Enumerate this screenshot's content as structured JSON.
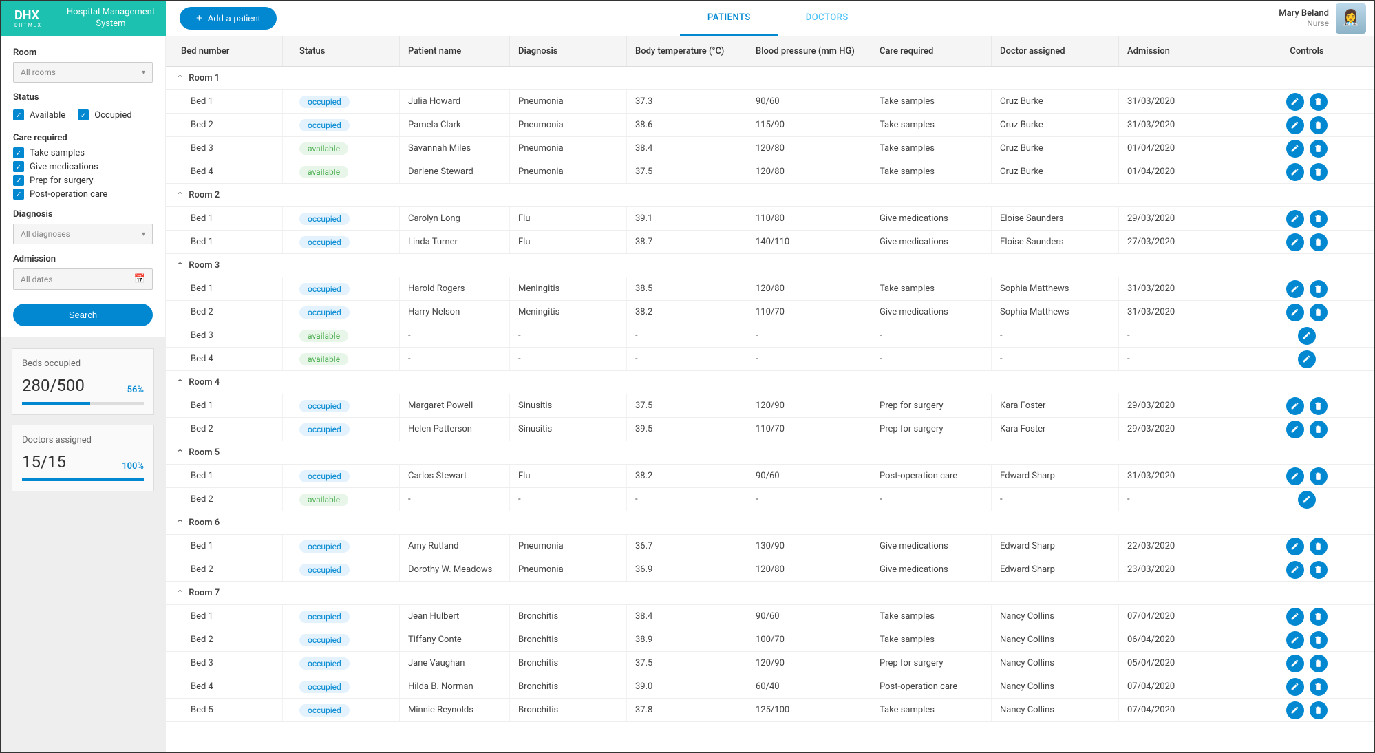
{
  "header": {
    "logo_main": "DHX",
    "logo_sub": "DHTMLX",
    "system_title": "Hospital Management System",
    "add_patient": "Add a patient",
    "tabs": {
      "patients": "PATIENTS",
      "doctors": "DOCTORS"
    },
    "user": {
      "name": "Mary Beland",
      "role": "Nurse"
    }
  },
  "sidebar": {
    "room_label": "Room",
    "room_select": "All rooms",
    "status_label": "Status",
    "status_opts": {
      "available": "Available",
      "occupied": "Occupied"
    },
    "care_label": "Care required",
    "care_opts": [
      "Take samples",
      "Give medications",
      "Prep for surgery",
      "Post-operation care"
    ],
    "diag_label": "Diagnosis",
    "diag_select": "All diagnoses",
    "adm_label": "Admission",
    "adm_select": "All dates",
    "search_btn": "Search",
    "stats": {
      "beds": {
        "label": "Beds occupied",
        "value": "280/500",
        "pct": "56%",
        "pct_num": 56
      },
      "docs": {
        "label": "Doctors assigned",
        "value": "15/15",
        "pct": "100%",
        "pct_num": 100
      }
    }
  },
  "columns": {
    "bed": "Bed number",
    "status": "Status",
    "name": "Patient name",
    "diag": "Diagnosis",
    "temp": "Body temperature (°C)",
    "bp": "Blood pressure (mm HG)",
    "care": "Care required",
    "doc": "Doctor assigned",
    "adm": "Admission",
    "controls": "Controls"
  },
  "groups": [
    {
      "title": "Room 1",
      "rows": [
        {
          "bed": "Bed 1",
          "status": "occupied",
          "name": "Julia Howard",
          "diag": "Pneumonia",
          "temp": "37.3",
          "bp": "90/60",
          "care": "Take samples",
          "doc": "Cruz Burke",
          "adm": "31/03/2020",
          "del": true
        },
        {
          "bed": "Bed 2",
          "status": "occupied",
          "name": "Pamela Clark",
          "diag": "Pneumonia",
          "temp": "38.6",
          "bp": "115/90",
          "care": "Take samples",
          "doc": "Cruz Burke",
          "adm": "31/03/2020",
          "del": true
        },
        {
          "bed": "Bed 3",
          "status": "available",
          "name": "Savannah Miles",
          "diag": "Pneumonia",
          "temp": "38.4",
          "bp": "120/80",
          "care": "Take samples",
          "doc": "Cruz Burke",
          "adm": "01/04/2020",
          "del": true
        },
        {
          "bed": "Bed 4",
          "status": "available",
          "name": "Darlene Steward",
          "diag": "Pneumonia",
          "temp": "37.5",
          "bp": "120/80",
          "care": "Take samples",
          "doc": "Cruz Burke",
          "adm": "01/04/2020",
          "del": true
        }
      ]
    },
    {
      "title": "Room 2",
      "rows": [
        {
          "bed": "Bed 1",
          "status": "occupied",
          "name": "Carolyn Long",
          "diag": "Flu",
          "temp": "39.1",
          "bp": "110/80",
          "care": "Give medications",
          "doc": "Eloise Saunders",
          "adm": "29/03/2020",
          "del": true
        },
        {
          "bed": "Bed 1",
          "status": "occupied",
          "name": "Linda Turner",
          "diag": "Flu",
          "temp": "38.7",
          "bp": "140/110",
          "care": "Give medications",
          "doc": "Eloise Saunders",
          "adm": "27/03/2020",
          "del": true
        }
      ]
    },
    {
      "title": "Room 3",
      "rows": [
        {
          "bed": "Bed 1",
          "status": "occupied",
          "name": "Harold Rogers",
          "diag": "Meningitis",
          "temp": "38.5",
          "bp": "120/80",
          "care": "Take samples",
          "doc": "Sophia Matthews",
          "adm": "31/03/2020",
          "del": true
        },
        {
          "bed": "Bed 2",
          "status": "occupied",
          "name": "Harry Nelson",
          "diag": "Meningitis",
          "temp": "38.2",
          "bp": "110/70",
          "care": "Give medications",
          "doc": "Sophia Matthews",
          "adm": "31/03/2020",
          "del": true
        },
        {
          "bed": "Bed 3",
          "status": "available",
          "name": "-",
          "diag": "-",
          "temp": "-",
          "bp": "-",
          "care": "-",
          "doc": "-",
          "adm": "-",
          "del": false
        },
        {
          "bed": "Bed 4",
          "status": "available",
          "name": "-",
          "diag": "-",
          "temp": "-",
          "bp": "-",
          "care": "-",
          "doc": "-",
          "adm": "-",
          "del": false
        }
      ]
    },
    {
      "title": "Room 4",
      "rows": [
        {
          "bed": "Bed 1",
          "status": "occupied",
          "name": "Margaret Powell",
          "diag": "Sinusitis",
          "temp": "37.5",
          "bp": "120/90",
          "care": "Prep for surgery",
          "doc": "Kara Foster",
          "adm": "29/03/2020",
          "del": true
        },
        {
          "bed": "Bed 2",
          "status": "occupied",
          "name": "Helen Patterson",
          "diag": "Sinusitis",
          "temp": "39.5",
          "bp": "110/70",
          "care": "Prep for surgery",
          "doc": "Kara Foster",
          "adm": "29/03/2020",
          "del": true
        }
      ]
    },
    {
      "title": "Room 5",
      "rows": [
        {
          "bed": "Bed 1",
          "status": "occupied",
          "name": "Carlos Stewart",
          "diag": "Flu",
          "temp": "38.2",
          "bp": "90/60",
          "care": "Post-operation care",
          "doc": "Edward Sharp",
          "adm": "31/03/2020",
          "del": true
        },
        {
          "bed": "Bed 2",
          "status": "available",
          "name": "-",
          "diag": "-",
          "temp": "-",
          "bp": "-",
          "care": "-",
          "doc": "-",
          "adm": "-",
          "del": false
        }
      ]
    },
    {
      "title": "Room 6",
      "rows": [
        {
          "bed": "Bed 1",
          "status": "occupied",
          "name": "Amy Rutland",
          "diag": "Pneumonia",
          "temp": "36.7",
          "bp": "130/90",
          "care": "Give medications",
          "doc": "Edward Sharp",
          "adm": "22/03/2020",
          "del": true
        },
        {
          "bed": "Bed 2",
          "status": "occupied",
          "name": "Dorothy W. Meadows",
          "diag": "Pneumonia",
          "temp": "36.9",
          "bp": "120/80",
          "care": "Give medications",
          "doc": "Edward Sharp",
          "adm": "23/03/2020",
          "del": true
        }
      ]
    },
    {
      "title": "Room 7",
      "rows": [
        {
          "bed": "Bed 1",
          "status": "occupied",
          "name": "Jean Hulbert",
          "diag": "Bronchitis",
          "temp": "38.4",
          "bp": "90/60",
          "care": "Take samples",
          "doc": "Nancy Collins",
          "adm": "07/04/2020",
          "del": true
        },
        {
          "bed": "Bed 2",
          "status": "occupied",
          "name": "Tiffany Conte",
          "diag": "Bronchitis",
          "temp": "38.9",
          "bp": "100/70",
          "care": "Take samples",
          "doc": "Nancy Collins",
          "adm": "06/04/2020",
          "del": true
        },
        {
          "bed": "Bed 3",
          "status": "occupied",
          "name": "Jane Vaughan",
          "diag": "Bronchitis",
          "temp": "37.5",
          "bp": "120/90",
          "care": "Prep for surgery",
          "doc": "Nancy Collins",
          "adm": "05/04/2020",
          "del": true
        },
        {
          "bed": "Bed 4",
          "status": "occupied",
          "name": "Hilda B. Norman",
          "diag": "Bronchitis",
          "temp": "39.0",
          "bp": "60/40",
          "care": "Post-operation care",
          "doc": "Nancy Collins",
          "adm": "07/04/2020",
          "del": true
        },
        {
          "bed": "Bed 5",
          "status": "occupied",
          "name": "Minnie Reynolds",
          "diag": "Bronchitis",
          "temp": "37.8",
          "bp": "125/100",
          "care": "Take samples",
          "doc": "Nancy Collins",
          "adm": "07/04/2020",
          "del": true
        }
      ]
    }
  ]
}
